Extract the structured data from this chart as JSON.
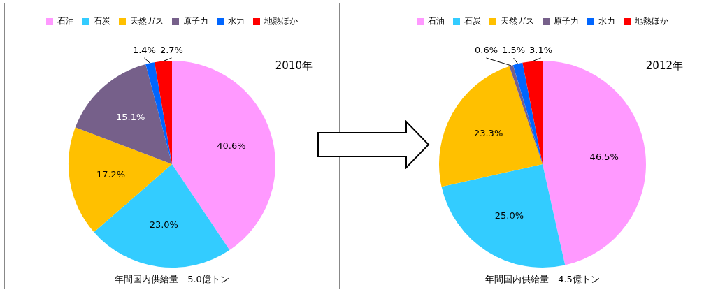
{
  "chart_data": [
    {
      "type": "pie",
      "title": "2010年",
      "categories": [
        "石油",
        "石炭",
        "天然ガス",
        "原子力",
        "水力",
        "地熱ほか"
      ],
      "values": [
        40.6,
        23.0,
        17.2,
        15.1,
        1.4,
        2.7
      ],
      "colors": [
        "#ff99ff",
        "#33ccff",
        "#ffc000",
        "#76608a",
        "#0066ff",
        "#ff0000"
      ],
      "value_labels": [
        "40.6%",
        "23.0%",
        "17.2%",
        "15.1%",
        "1.4%",
        "2.7%"
      ],
      "legend": "top",
      "annotations": [
        "年間国内供給量　5.0億トン"
      ]
    },
    {
      "type": "pie",
      "title": "2012年",
      "categories": [
        "石油",
        "石炭",
        "天然ガス",
        "原子力",
        "水力",
        "地熱ほか"
      ],
      "values": [
        46.5,
        25.0,
        23.3,
        0.6,
        1.5,
        3.1
      ],
      "colors": [
        "#ff99ff",
        "#33ccff",
        "#ffc000",
        "#76608a",
        "#0066ff",
        "#ff0000"
      ],
      "value_labels": [
        "46.5%",
        "25.0%",
        "23.3%",
        "0.6%",
        "1.5%",
        "3.1%"
      ],
      "legend": "top",
      "annotations": [
        "年間国内供給量　4.5億トン"
      ]
    }
  ]
}
